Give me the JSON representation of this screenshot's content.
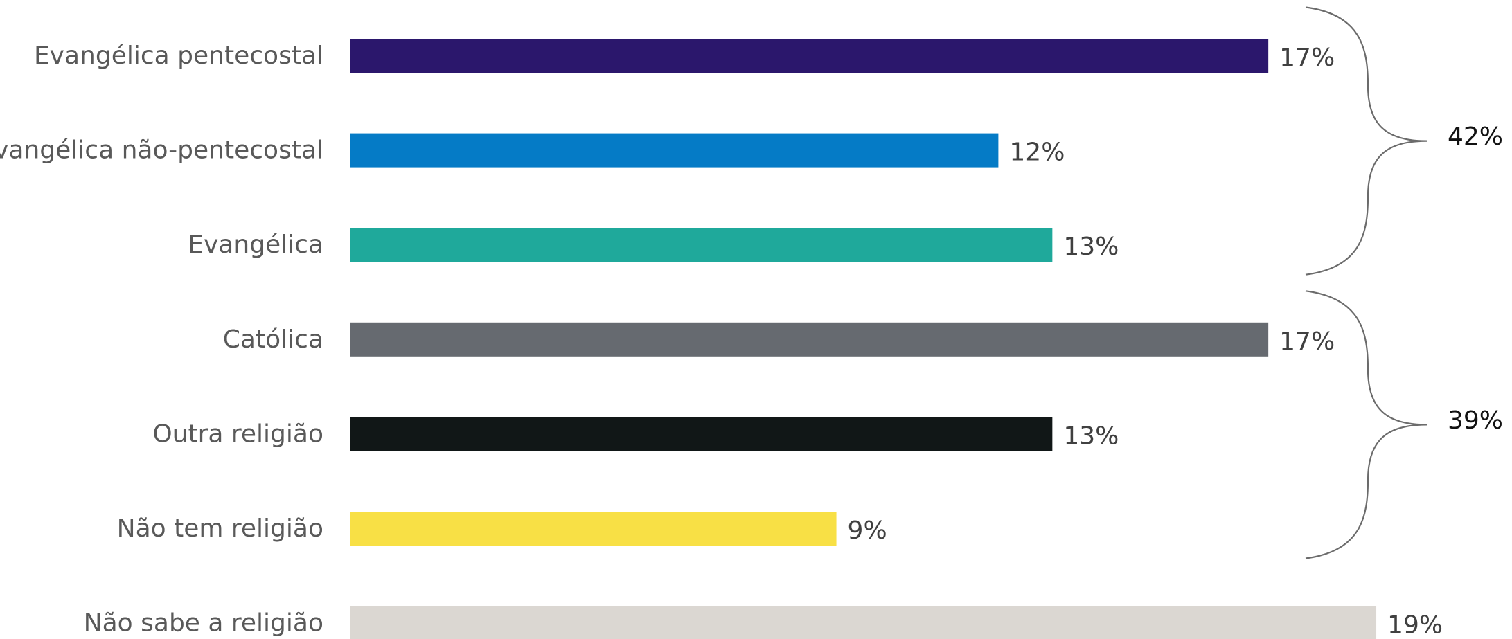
{
  "chart_data": {
    "type": "bar",
    "orientation": "horizontal",
    "title": "",
    "xlabel": "",
    "ylabel": "",
    "xlim": [
      0,
      19
    ],
    "grid": false,
    "legend": "none",
    "categories": [
      "Evangélica pentecostal",
      "Evangélica não-pentecostal",
      "Evangélica",
      "Católica",
      "Outra religião",
      "Não tem religião",
      "Não sabe a religião"
    ],
    "values": [
      17,
      12,
      13,
      17,
      13,
      9,
      19
    ],
    "value_labels": [
      "17%",
      "12%",
      "13%",
      "17%",
      "13%",
      "9%",
      "19%"
    ],
    "colors": [
      "#2b176c",
      "#057bc6",
      "#1fa99b",
      "#666a70",
      "#111717",
      "#f8e045",
      "#dbd7d2"
    ],
    "groups": [
      {
        "label": "42%",
        "from": 0,
        "to": 2
      },
      {
        "label": "39%",
        "from": 3,
        "to": 5
      }
    ]
  }
}
